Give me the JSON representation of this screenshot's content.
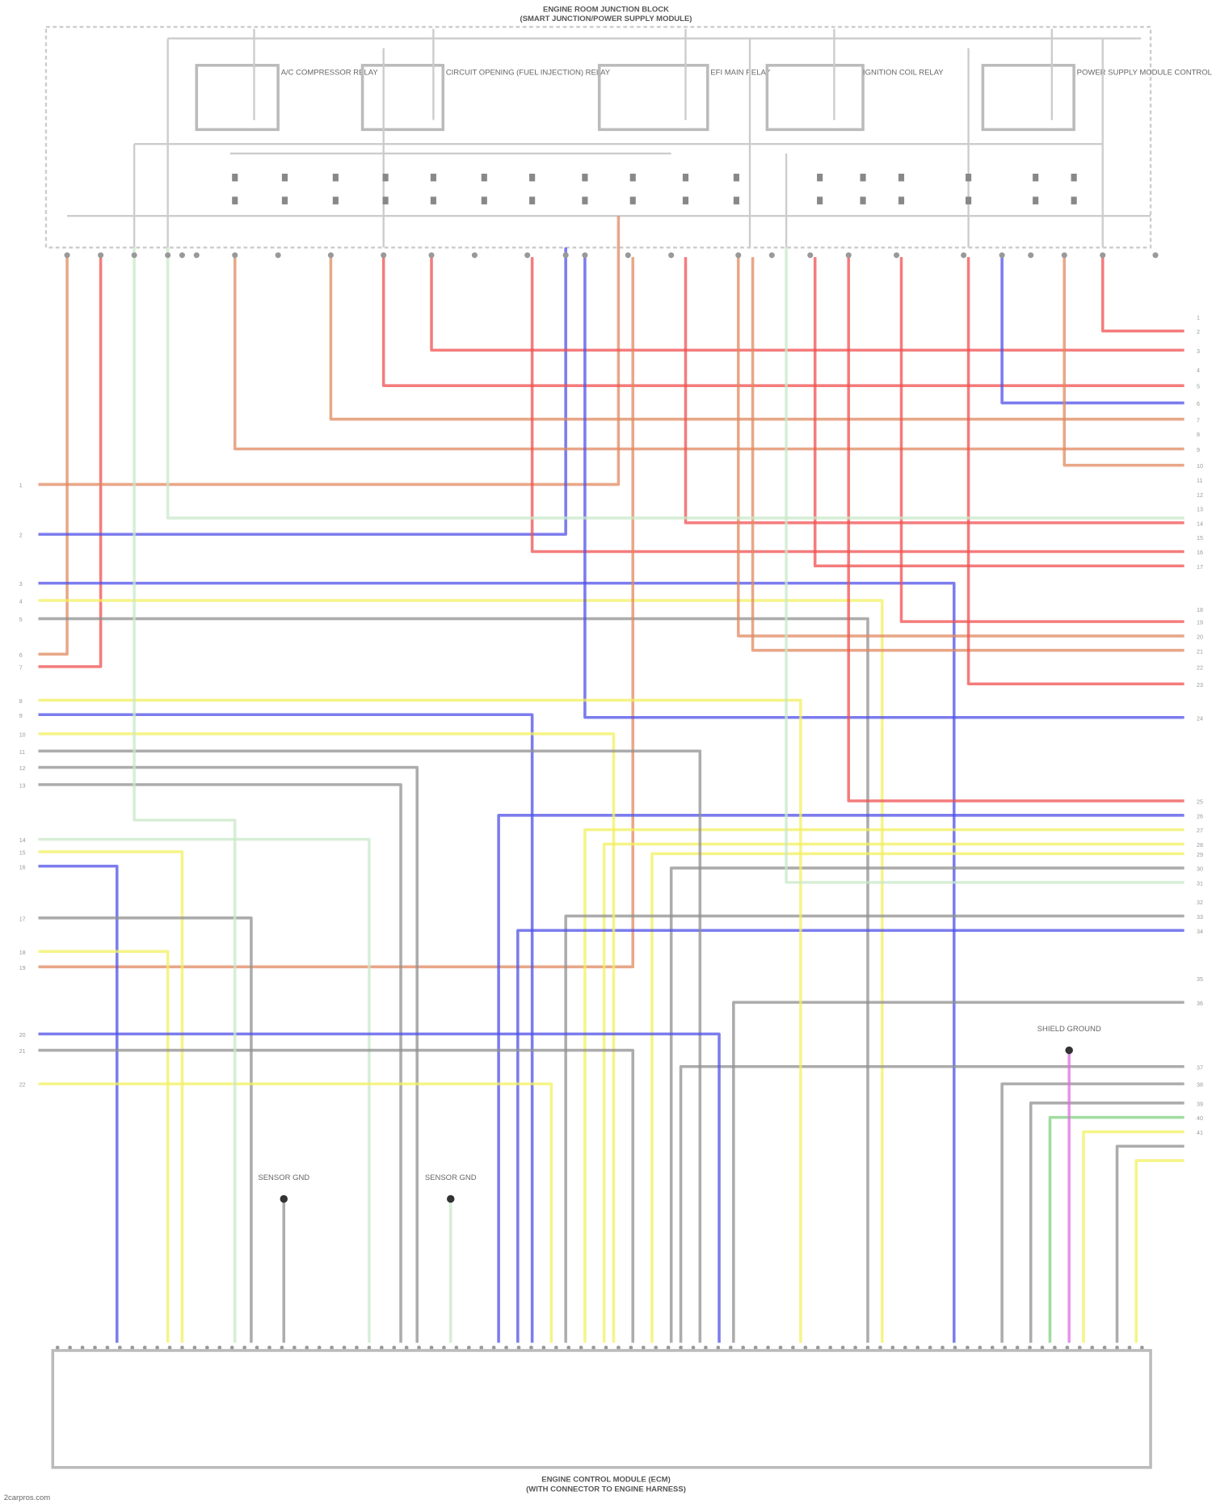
{
  "diagram": {
    "top_title": [
      "ENGINE ROOM JUNCTION BLOCK",
      "(SMART JUNCTION/POWER SUPPLY MODULE)"
    ],
    "bottom_title": [
      "ENGINE CONTROL MODULE (ECM)",
      "(WITH CONNECTOR TO ENGINE HARNESS)"
    ],
    "footer": "2carpros.com",
    "relays": [
      {
        "label": "A/C COMPRESSOR RELAY"
      },
      {
        "label": "CIRCUIT OPENING (FUEL INJECTION) RELAY"
      },
      {
        "label": "EFI MAIN RELAY"
      },
      {
        "label": "IGNITION COIL RELAY"
      },
      {
        "label": "POWER SUPPLY MODULE CONTROL RELAY"
      }
    ],
    "ground_points": [
      {
        "label": "SENSOR GND"
      },
      {
        "label": "SENSOR GND"
      },
      {
        "label": "SHIELD GROUND"
      }
    ],
    "right_pin_numbers": [
      "1",
      "2",
      "3",
      "4",
      "5",
      "6",
      "7",
      "8",
      "9",
      "10",
      "11",
      "12",
      "13",
      "14",
      "15",
      "16",
      "17",
      "18",
      "19",
      "20",
      "21",
      "22",
      "23",
      "24",
      "25",
      "26",
      "27",
      "28",
      "29",
      "30",
      "31",
      "32",
      "33",
      "34",
      "35",
      "36",
      "37",
      "38",
      "39",
      "40",
      "41"
    ],
    "left_pin_numbers": [
      "1",
      "2",
      "3",
      "4",
      "5",
      "6",
      "7",
      "8",
      "9",
      "10",
      "11",
      "12",
      "13",
      "14",
      "15",
      "16",
      "17",
      "18",
      "19",
      "20",
      "21",
      "22"
    ],
    "wire_colors": {
      "red": "#f05050",
      "orange": "#e08a60",
      "blue": "#5050e8",
      "yellow": "#f2f060",
      "gray": "#909090",
      "green": "#80d080",
      "magenta": "#e070e0",
      "lightgreen": "#c8e8c8"
    }
  }
}
